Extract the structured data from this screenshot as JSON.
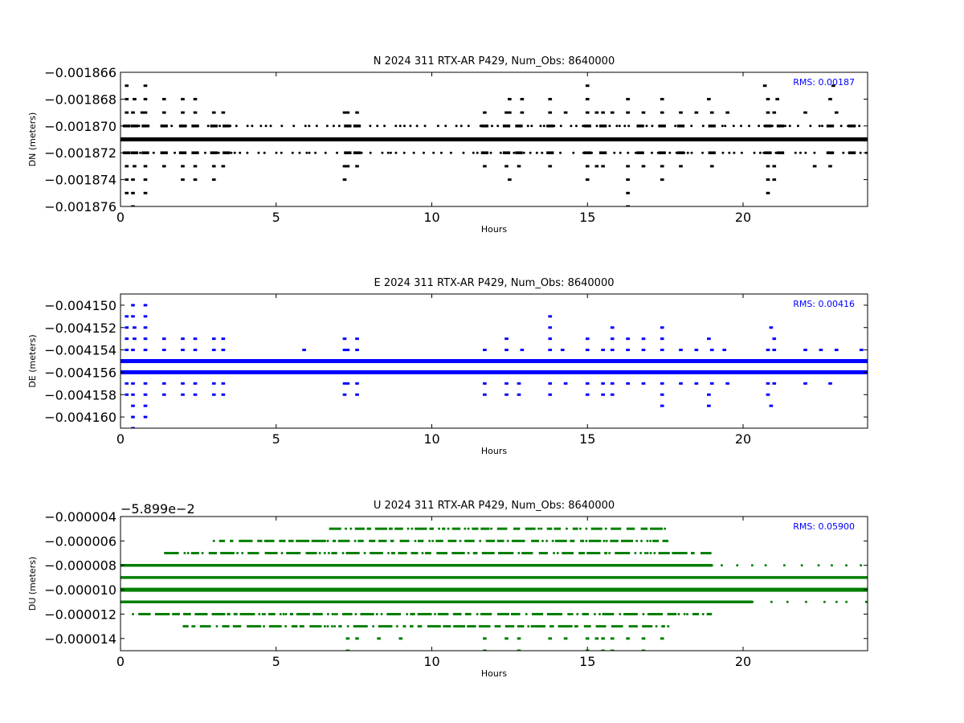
{
  "chart_data": [
    {
      "type": "scatter",
      "title": "N 2024 311 RTX-AR  P429, Num_Obs: 8640000",
      "xlabel": "Hours",
      "ylabel": "DN (meters)",
      "xlim": [
        0,
        24
      ],
      "ylim": [
        -0.001876,
        -0.001866
      ],
      "xticks": [
        0,
        5,
        10,
        15,
        20
      ],
      "xtick_labels": [
        "0",
        "5",
        "10",
        "15",
        "20"
      ],
      "yticks": [
        -0.001866,
        -0.001868,
        -0.00187,
        -0.001872,
        -0.001874,
        -0.001876
      ],
      "ytick_labels": [
        "−0.001866",
        "−0.001868",
        "−0.001870",
        "−0.001872",
        "−0.001874",
        "−0.001876"
      ],
      "annotation": "RMS:  0.00187",
      "offset_text": "",
      "color": "#000000",
      "annotation_color": "#0000ff",
      "grid": false,
      "levels": [
        {
          "y": -0.001871,
          "density": "continuous"
        },
        {
          "y": -0.00187,
          "density": "dense",
          "clusters": [
            0.2,
            0.45,
            0.8,
            1.4,
            2.0,
            2.4,
            3.0,
            3.4,
            7.3,
            7.6,
            11.7,
            12.4,
            12.8,
            13.8,
            15.0,
            15.5,
            16.7,
            17.4,
            18.0,
            19.0,
            20.8,
            21.2,
            22.8,
            23.5
          ]
        },
        {
          "y": -0.001872,
          "density": "dense",
          "clusters": [
            0.2,
            0.45,
            0.8,
            1.4,
            2.0,
            2.4,
            3.0,
            3.4,
            7.3,
            7.6,
            11.7,
            12.4,
            12.8,
            13.8,
            15.0,
            15.5,
            16.7,
            17.4,
            18.0,
            19.0,
            20.8,
            21.2,
            22.8,
            23.5
          ]
        },
        {
          "y": -0.001869,
          "density": "sparse",
          "points": [
            0.2,
            0.4,
            0.7,
            0.8,
            1.4,
            2.0,
            2.4,
            3.0,
            3.3,
            7.2,
            7.3,
            7.6,
            11.7,
            12.4,
            12.5,
            12.9,
            13.8,
            14.3,
            15.0,
            15.3,
            15.5,
            15.8,
            16.3,
            16.8,
            17.4,
            18.0,
            18.5,
            19.0,
            19.5,
            20.8,
            21.0,
            22.0,
            23.0
          ]
        },
        {
          "y": -0.001873,
          "density": "sparse",
          "points": [
            0.2,
            0.45,
            0.8,
            1.4,
            2.0,
            2.4,
            3.0,
            3.3,
            7.2,
            7.3,
            7.6,
            11.7,
            12.4,
            12.8,
            13.8,
            15.0,
            15.3,
            15.5,
            16.3,
            16.8,
            17.4,
            18.0,
            19.0,
            20.8,
            21.0,
            22.3,
            22.8
          ]
        },
        {
          "y": -0.001868,
          "points": [
            0.2,
            0.45,
            0.8,
            1.4,
            2.0,
            2.4,
            12.5,
            12.9,
            13.8,
            15.0,
            16.3,
            17.4,
            18.9,
            20.8,
            21.1,
            22.8
          ]
        },
        {
          "y": -0.001874,
          "points": [
            0.2,
            0.4,
            0.8,
            2.0,
            2.4,
            3.0,
            7.2,
            12.5,
            15.0,
            16.3,
            17.4,
            20.8,
            21.0
          ]
        },
        {
          "y": -0.001867,
          "points": [
            0.2,
            0.8,
            15.0,
            20.7,
            22.9
          ]
        },
        {
          "y": -0.001875,
          "points": [
            0.2,
            0.4,
            0.8,
            16.3,
            20.8
          ]
        },
        {
          "y": -0.001876,
          "points": [
            0.4,
            16.3
          ]
        }
      ]
    },
    {
      "type": "scatter",
      "title": "E 2024 311 RTX-AR  P429, Num_Obs: 8640000",
      "xlabel": "Hours",
      "ylabel": "DE (meters)",
      "xlim": [
        0,
        24
      ],
      "ylim": [
        -0.004161,
        -0.004149
      ],
      "xticks": [
        0,
        5,
        10,
        15,
        20
      ],
      "xtick_labels": [
        "0",
        "5",
        "10",
        "15",
        "20"
      ],
      "yticks": [
        -0.00415,
        -0.004152,
        -0.004154,
        -0.004156,
        -0.004158,
        -0.00416
      ],
      "ytick_labels": [
        "−0.004150",
        "−0.004152",
        "−0.004154",
        "−0.004156",
        "−0.004158",
        "−0.004160"
      ],
      "annotation": "RMS:  0.00416",
      "offset_text": "",
      "color": "#0000ff",
      "annotation_color": "#0000ff",
      "grid": false,
      "levels": [
        {
          "y": -0.004155,
          "density": "continuous"
        },
        {
          "y": -0.004156,
          "density": "continuous_dense"
        },
        {
          "y": -0.004154,
          "density": "sparse",
          "points": [
            0.2,
            0.4,
            0.8,
            1.4,
            2.0,
            2.4,
            3.0,
            3.3,
            5.9,
            7.2,
            7.3,
            7.6,
            11.7,
            12.4,
            12.9,
            13.8,
            14.2,
            15.0,
            15.5,
            15.8,
            16.3,
            16.8,
            17.4,
            18.0,
            18.5,
            19.0,
            19.4,
            20.8,
            21.0,
            22.0,
            22.5,
            23.0,
            23.8
          ]
        },
        {
          "y": -0.004157,
          "density": "sparse",
          "points": [
            0.2,
            0.4,
            0.8,
            1.4,
            2.0,
            2.4,
            3.0,
            3.3,
            7.2,
            7.3,
            7.6,
            11.7,
            12.4,
            12.8,
            13.8,
            14.3,
            15.0,
            15.5,
            15.8,
            16.3,
            16.8,
            17.4,
            18.0,
            18.5,
            19.0,
            19.5,
            20.8,
            21.0,
            22.0,
            22.8
          ]
        },
        {
          "y": -0.004153,
          "points": [
            0.2,
            0.45,
            0.8,
            1.4,
            2.0,
            2.4,
            3.0,
            3.3,
            7.2,
            7.6,
            12.4,
            13.8,
            15.0,
            15.8,
            16.3,
            16.8,
            17.4,
            18.9,
            21.0
          ]
        },
        {
          "y": -0.004158,
          "points": [
            0.2,
            0.4,
            0.8,
            1.4,
            2.0,
            2.4,
            3.0,
            3.3,
            7.2,
            7.6,
            11.7,
            12.4,
            12.8,
            13.8,
            15.0,
            15.5,
            15.8,
            17.4,
            18.9,
            20.8
          ]
        },
        {
          "y": -0.004152,
          "points": [
            0.2,
            0.45,
            0.8,
            13.8,
            15.8,
            17.4,
            20.9
          ]
        },
        {
          "y": -0.004151,
          "points": [
            0.2,
            0.4,
            0.8,
            13.8
          ]
        },
        {
          "y": -0.00415,
          "points": [
            0.4,
            0.8
          ]
        },
        {
          "y": -0.004159,
          "points": [
            0.4,
            0.8,
            17.4,
            18.9,
            20.9
          ]
        },
        {
          "y": -0.00416,
          "points": [
            0.4,
            0.8
          ]
        },
        {
          "y": -0.004161,
          "points": [
            0.4
          ]
        }
      ]
    },
    {
      "type": "scatter",
      "title": "U 2024 311 RTX-AR  P429, Num_Obs: 8640000",
      "xlabel": "Hours",
      "ylabel": "DU (meters)",
      "xlim": [
        0,
        24
      ],
      "ylim": [
        -1.5e-05,
        -4e-06
      ],
      "xticks": [
        0,
        5,
        10,
        15,
        20
      ],
      "xtick_labels": [
        "0",
        "5",
        "10",
        "15",
        "20"
      ],
      "yticks": [
        -4e-06,
        -6e-06,
        -8e-06,
        -1e-05,
        -1.2e-05,
        -1.4e-05
      ],
      "ytick_labels": [
        "−0.000004",
        "−0.000006",
        "−0.000008",
        "−0.000010",
        "−0.000012",
        "−0.000014"
      ],
      "annotation": "RMS:  0.05900",
      "offset_text": "−5.899e−2",
      "color": "#007f00",
      "annotation_color": "#0000ff",
      "grid": false,
      "levels": [
        {
          "y": -1e-05,
          "density": "continuous"
        },
        {
          "y": -9e-06,
          "density": "continuous_to",
          "xmax": 24.0
        },
        {
          "y": -1.1e-05,
          "density": "continuous_to",
          "xmax": 20.3
        },
        {
          "y": -8e-06,
          "density": "continuous_to",
          "xmax": 19.0
        },
        {
          "y": -7e-06,
          "density": "range",
          "xmin": 1.4,
          "xmax": 19.0
        },
        {
          "y": -6e-06,
          "density": "range",
          "xmin": 3.0,
          "xmax": 17.6
        },
        {
          "y": -1.2e-05,
          "density": "range",
          "xmin": 0.4,
          "xmax": 19.0
        },
        {
          "y": -1.3e-05,
          "density": "range",
          "xmin": 2.0,
          "xmax": 17.6
        },
        {
          "y": -5e-06,
          "density": "range",
          "xmin": 6.7,
          "xmax": 17.6
        },
        {
          "y": -1.4e-05,
          "points": [
            7.3,
            7.6,
            8.3,
            9.0,
            11.7,
            12.4,
            12.8,
            13.8,
            14.3,
            15.0,
            15.3,
            15.5,
            15.8,
            16.3,
            16.8,
            17.4
          ]
        },
        {
          "y": -1.5e-05,
          "points": [
            7.3,
            11.7,
            12.8,
            15.0,
            15.5,
            15.8,
            16.8
          ]
        }
      ]
    }
  ]
}
